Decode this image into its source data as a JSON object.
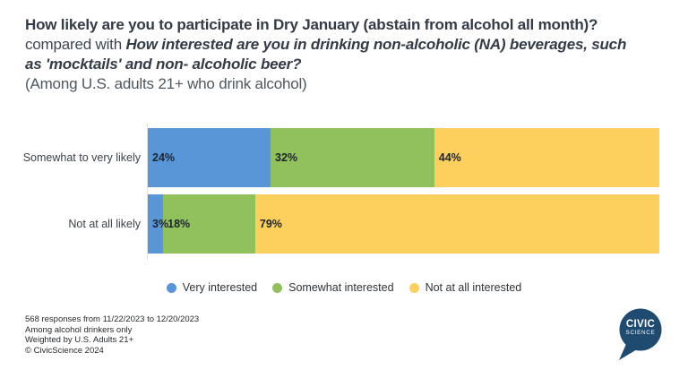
{
  "title": {
    "question1": "How likely are you to participate in Dry January (abstain from alcohol all month)?",
    "connector": " compared with ",
    "question2": "How interested are you in drinking non-alcoholic (NA) beverages, such as 'mocktails' and non- alcoholic beer?",
    "subtitle": "(Among U.S. adults 21+ who drink alcohol)"
  },
  "chart_data": {
    "type": "bar",
    "orientation": "horizontal",
    "stacked": true,
    "categories": [
      "Somewhat to very likely",
      "Not at all likely"
    ],
    "series": [
      {
        "name": "Very interested",
        "color": "#5896d8",
        "values": [
          24,
          3
        ]
      },
      {
        "name": "Somewhat interested",
        "color": "#90c15c",
        "values": [
          32,
          18
        ]
      },
      {
        "name": "Not at all interested",
        "color": "#fdd05e",
        "values": [
          44,
          79
        ]
      }
    ],
    "value_suffix": "%",
    "xlim": [
      0,
      100
    ],
    "grid": false,
    "legend_position": "bottom-center",
    "value_labels": "inside-start"
  },
  "footer": {
    "lines": [
      "568 responses from 11/22/2023 to 12/20/2023",
      "Among alcohol drinkers only",
      "Weighted by U.S. Adults 21+",
      "© CivicScience 2024"
    ]
  },
  "logo": {
    "line1": "CIVIC",
    "line2": "SCIENCE",
    "color": "#1f4b70"
  }
}
